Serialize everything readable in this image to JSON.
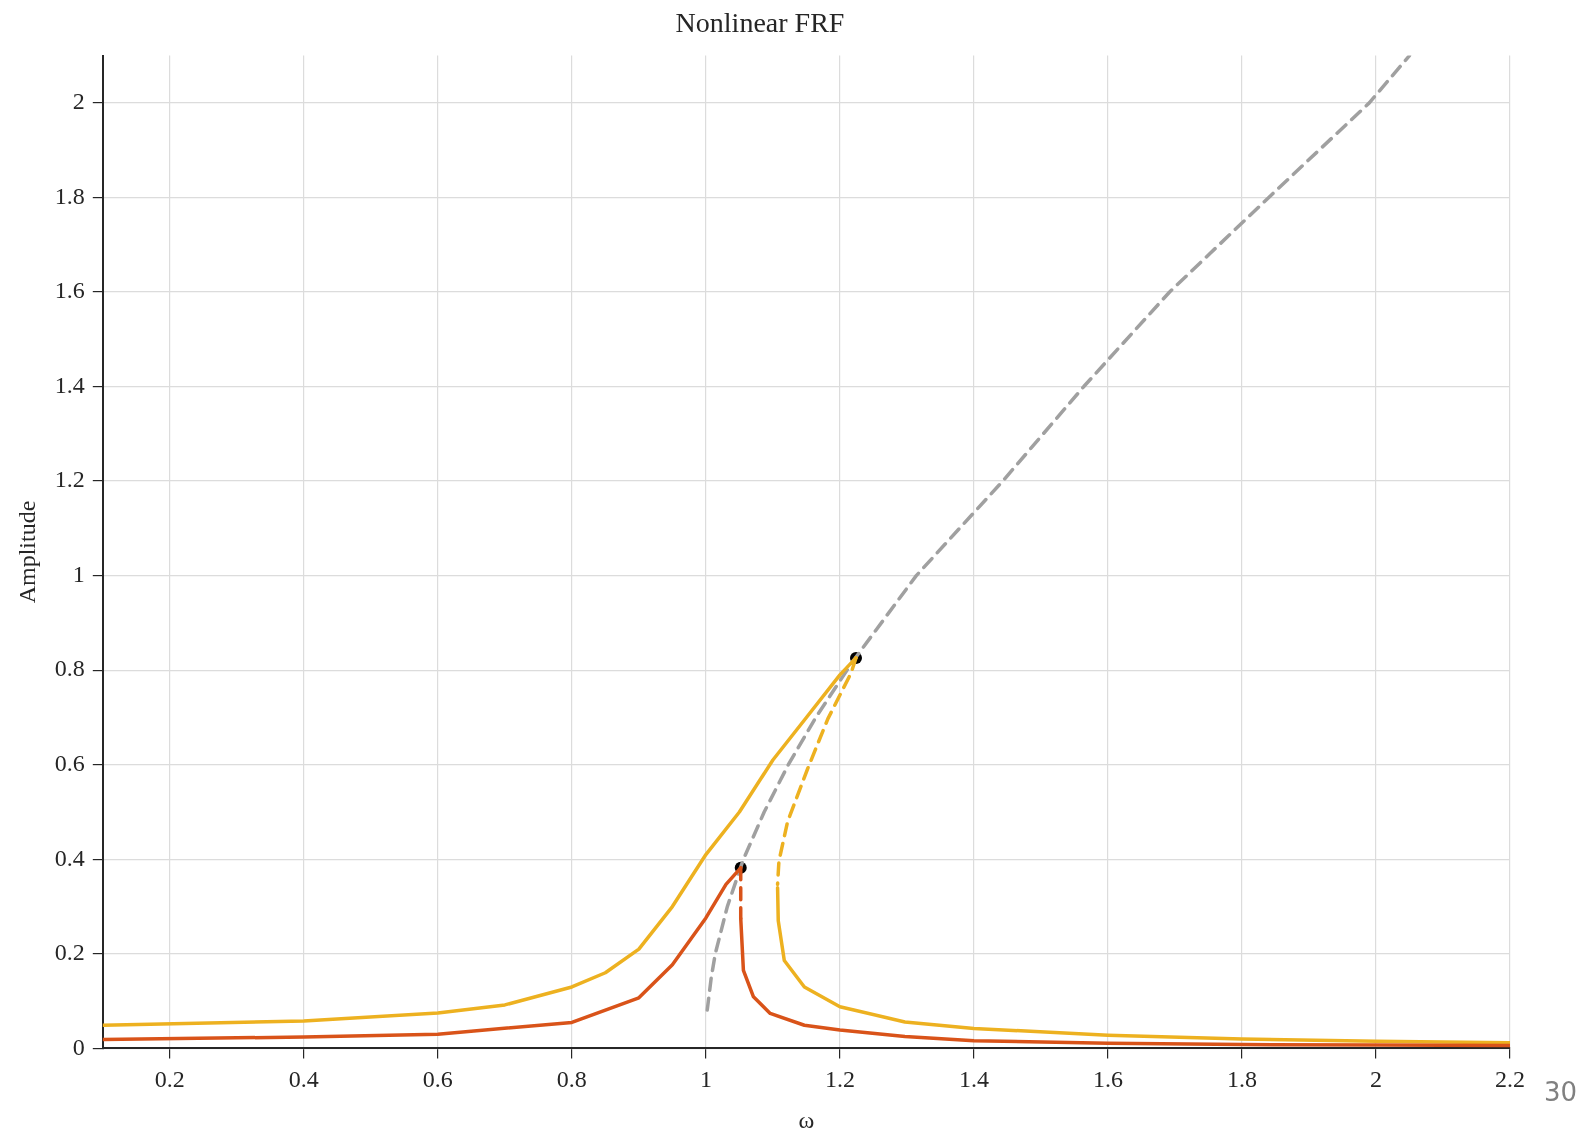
{
  "chart_data": {
    "type": "line",
    "title": "Nonlinear FRF",
    "xlabel": "ω",
    "ylabel": "Amplitude",
    "xlim": [
      0.1,
      2.2
    ],
    "ylim": [
      0,
      2.1
    ],
    "xticks": [
      0.2,
      0.4,
      0.6,
      0.8,
      1,
      1.2,
      1.4,
      1.6,
      1.8,
      2,
      2.2
    ],
    "yticks": [
      0,
      0.2,
      0.4,
      0.6,
      0.8,
      1,
      1.2,
      1.4,
      1.6,
      1.8,
      2
    ],
    "grid": true,
    "legend": false,
    "marker": "none",
    "line_style": "solid",
    "annotations": [
      "30"
    ],
    "series": [
      {
        "color": "#d95319",
        "x": [
          0.1,
          0.4,
          0.6,
          0.8,
          0.9,
          0.95,
          1.0,
          1.03,
          1.052
        ],
        "values": [
          0.019,
          0.024,
          0.03,
          0.055,
          0.107,
          0.177,
          0.276,
          0.347,
          0.382
        ]
      },
      {
        "color": "#d95319",
        "line_style": "dashed",
        "x": [
          1.052,
          1.052,
          1.052
        ],
        "values": [
          0.382,
          0.33,
          0.275
        ]
      },
      {
        "color": "#d95319",
        "x": [
          1.052,
          1.056,
          1.071,
          1.096,
          1.147,
          1.2,
          1.297,
          1.4,
          1.6,
          1.8,
          2.0,
          2.2
        ],
        "values": [
          0.275,
          0.165,
          0.109,
          0.074,
          0.049,
          0.039,
          0.025,
          0.016,
          0.011,
          0.008,
          0.007,
          0.006
        ]
      },
      {
        "color": "#edb120",
        "x": [
          0.1,
          0.4,
          0.6,
          0.7,
          0.8,
          0.85,
          0.9,
          0.95,
          1.0,
          1.05,
          1.1,
          1.15,
          1.2,
          1.224
        ],
        "values": [
          0.049,
          0.058,
          0.075,
          0.092,
          0.13,
          0.16,
          0.21,
          0.3,
          0.41,
          0.5,
          0.61,
          0.7,
          0.79,
          0.826
        ]
      },
      {
        "color": "#edb120",
        "line_style": "dashed",
        "x": [
          1.224,
          1.217,
          1.182,
          1.152,
          1.122,
          1.109,
          1.107
        ],
        "values": [
          0.826,
          0.795,
          0.697,
          0.592,
          0.48,
          0.396,
          0.347
        ]
      },
      {
        "color": "#edb120",
        "x": [
          1.107,
          1.108,
          1.117,
          1.147,
          1.2,
          1.297,
          1.4,
          1.6,
          1.8,
          2.0,
          2.2
        ],
        "values": [
          0.34,
          0.27,
          0.186,
          0.13,
          0.088,
          0.056,
          0.042,
          0.028,
          0.02,
          0.015,
          0.012
        ]
      },
      {
        "color": "#a0a0a0",
        "line_style": "dashed",
        "x": [
          1.002,
          1.008,
          1.014,
          1.032,
          1.056,
          1.087,
          1.123,
          1.164,
          1.22,
          1.314,
          1.443,
          1.564,
          1.692,
          1.84,
          1.99,
          2.05
        ],
        "values": [
          0.081,
          0.15,
          0.2,
          0.3,
          0.4,
          0.5,
          0.6,
          0.7,
          0.82,
          1.0,
          1.2,
          1.4,
          1.6,
          1.8,
          2.0,
          2.1
        ]
      },
      {
        "type": "scatter",
        "color": "#000000",
        "marker": "circle",
        "x": [
          1.052,
          1.224
        ],
        "values": [
          0.382,
          0.826
        ]
      }
    ]
  }
}
